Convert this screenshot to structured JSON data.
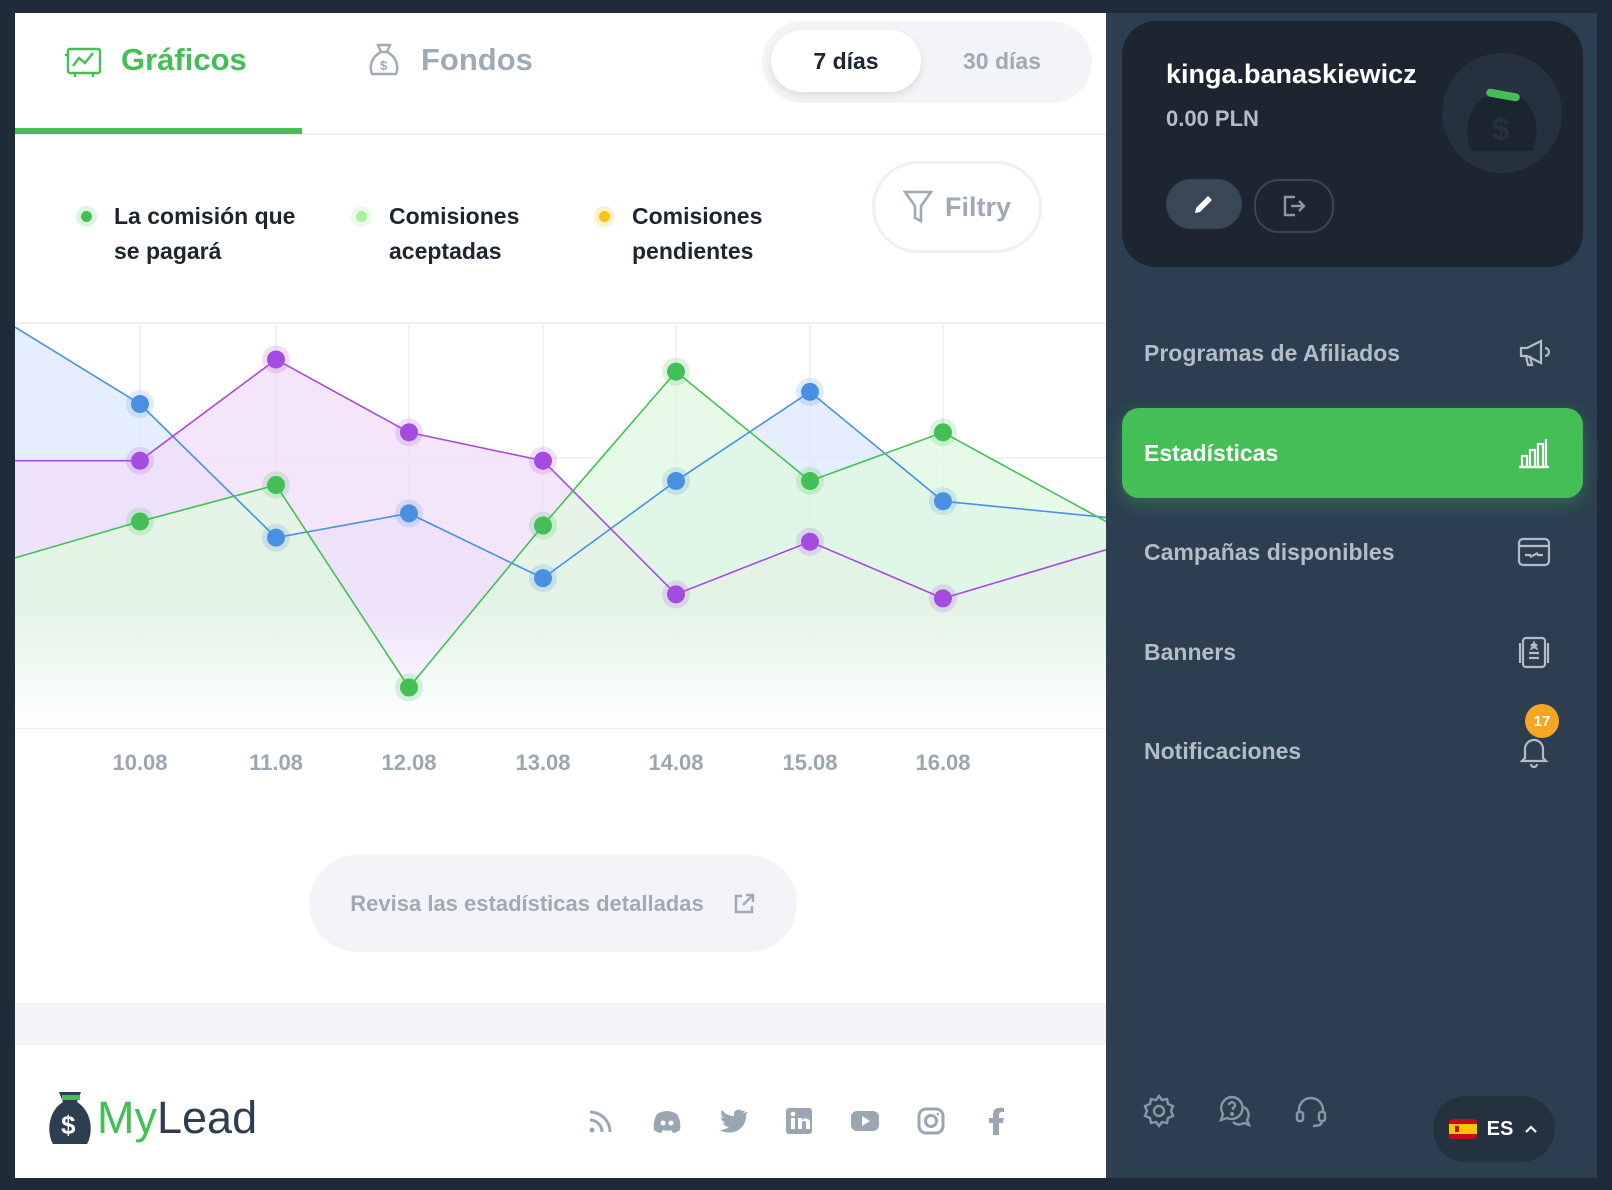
{
  "tabs": {
    "graficos": "Gráficos",
    "fondos": "Fondos"
  },
  "range": {
    "option_7": "7 días",
    "option_30": "30 días",
    "selected": "7 días"
  },
  "legend": [
    {
      "label_line1": "La comisión que",
      "label_line2": "se pagará",
      "color": "#44bf56"
    },
    {
      "label_line1": "Comisiones",
      "label_line2": "aceptadas",
      "color": "#a6f0a0"
    },
    {
      "label_line1": "Comisiones",
      "label_line2": "pendientes",
      "color": "#f6c30f"
    }
  ],
  "filter_label": "Filtry",
  "chart_data": {
    "type": "line",
    "categories": [
      "10.08",
      "11.08",
      "12.08",
      "13.08",
      "14.08",
      "15.08",
      "16.08"
    ],
    "ylim": [
      0,
      100
    ],
    "grid": true,
    "series": [
      {
        "color": "#4a90e2",
        "fill": "#dbe8fb",
        "start": 99,
        "end": 52,
        "values": [
          80,
          47,
          53,
          37,
          61,
          83,
          56
        ]
      },
      {
        "color": "#a64be0",
        "fill": "#f1dcfa",
        "start": 66,
        "end": 44,
        "values": [
          66,
          91,
          73,
          66,
          33,
          46,
          32
        ]
      },
      {
        "color": "#44bf56",
        "fill": "#dff8df",
        "start": 42,
        "end": 51,
        "values": [
          51,
          60,
          10,
          50,
          88,
          61,
          73
        ]
      }
    ]
  },
  "detail_button": "Revisa las estadísticas detalladas",
  "logo": {
    "part1": "My",
    "part2": "Lead"
  },
  "social_icons": [
    "rss-icon",
    "discord-icon",
    "twitter-icon",
    "linkedin-icon",
    "youtube-icon",
    "instagram-icon",
    "facebook-icon"
  ],
  "user": {
    "name": "kinga.banaskiewicz",
    "balance": "0.00 PLN"
  },
  "nav": [
    {
      "label": "Programas de Afiliados",
      "icon": "megaphone-icon"
    },
    {
      "label": "Estadísticas",
      "icon": "bar-chart-icon",
      "active": true
    },
    {
      "label": "Campañas disponibles",
      "icon": "campaign-link-icon"
    },
    {
      "label": "Banners",
      "icon": "banner-icon"
    },
    {
      "label": "Notificaciones",
      "icon": "bell-icon",
      "badge": "17"
    }
  ],
  "language": "ES",
  "colors": {
    "accent": "#44bf56",
    "sidebar": "#2c3e50",
    "card": "#1c2530",
    "badge": "#f6a623"
  }
}
